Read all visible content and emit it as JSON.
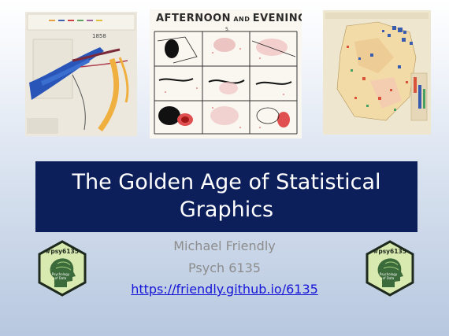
{
  "slide": {
    "title": "The Golden Age of Statistical Graphics",
    "author": "Michael Friendly",
    "course": "Psych 6135",
    "link": "https://friendly.github.io/6135"
  },
  "images": {
    "minard_year": "1858",
    "galton_title": "AFTERNOON",
    "galton_title_and": "AND",
    "galton_title_rest": "EVENING",
    "galton_number": "5."
  },
  "badge": {
    "tag": "#psy6135",
    "line1": "Psychology",
    "line2": "of Data"
  },
  "colors": {
    "title_bg": "#0d1f5a",
    "link": "#1515d8",
    "badge_fill": "#d9eab0",
    "badge_border": "#1e2a1e"
  }
}
